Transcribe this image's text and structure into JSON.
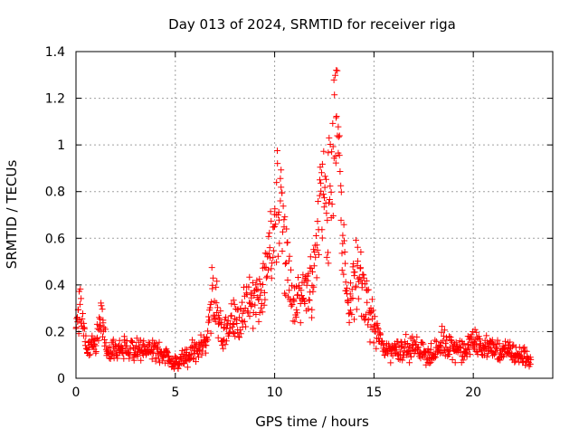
{
  "chart_data": {
    "type": "scatter",
    "title": "Day 013 of 2024, SRMTID for receiver riga",
    "xlabel": "GPS time / hours",
    "ylabel": "SRMTID / TECUs",
    "xlim": [
      0,
      24
    ],
    "ylim": [
      0,
      1.4
    ],
    "x_ticks": [
      0,
      5,
      10,
      15,
      20
    ],
    "x_tick_labels": [
      "0",
      "5",
      "10",
      "15",
      "20"
    ],
    "y_ticks": [
      0,
      0.2,
      0.4,
      0.6,
      0.8,
      1,
      1.2,
      1.4
    ],
    "y_tick_labels": [
      "0",
      "0.2",
      "0.4",
      "0.6",
      "0.8",
      "1",
      "1.2",
      "1.4"
    ],
    "grid": true,
    "marker": "plus",
    "series": [
      {
        "name": "SRMTID",
        "color": "#ff0000",
        "x_start": 0,
        "x_end": 22.9,
        "profile": [
          {
            "x": 0.0,
            "y": 0.2
          },
          {
            "x": 0.2,
            "y": 0.34
          },
          {
            "x": 0.5,
            "y": 0.14
          },
          {
            "x": 1.0,
            "y": 0.14
          },
          {
            "x": 1.3,
            "y": 0.28
          },
          {
            "x": 1.6,
            "y": 0.12
          },
          {
            "x": 3.0,
            "y": 0.13
          },
          {
            "x": 4.5,
            "y": 0.1
          },
          {
            "x": 4.9,
            "y": 0.06
          },
          {
            "x": 6.0,
            "y": 0.12
          },
          {
            "x": 6.6,
            "y": 0.15
          },
          {
            "x": 6.9,
            "y": 0.38
          },
          {
            "x": 7.4,
            "y": 0.18
          },
          {
            "x": 8.0,
            "y": 0.27
          },
          {
            "x": 9.0,
            "y": 0.32
          },
          {
            "x": 9.5,
            "y": 0.42
          },
          {
            "x": 10.0,
            "y": 0.68
          },
          {
            "x": 10.2,
            "y": 0.78
          },
          {
            "x": 10.5,
            "y": 0.55
          },
          {
            "x": 11.0,
            "y": 0.3
          },
          {
            "x": 11.5,
            "y": 0.38
          },
          {
            "x": 12.0,
            "y": 0.46
          },
          {
            "x": 12.4,
            "y": 0.8
          },
          {
            "x": 12.7,
            "y": 0.78
          },
          {
            "x": 13.0,
            "y": 0.95
          },
          {
            "x": 13.15,
            "y": 1.2
          },
          {
            "x": 13.4,
            "y": 0.6
          },
          {
            "x": 13.7,
            "y": 0.3
          },
          {
            "x": 14.1,
            "y": 0.46
          },
          {
            "x": 14.5,
            "y": 0.35
          },
          {
            "x": 15.0,
            "y": 0.22
          },
          {
            "x": 15.5,
            "y": 0.12
          },
          {
            "x": 17.0,
            "y": 0.13
          },
          {
            "x": 18.0,
            "y": 0.1
          },
          {
            "x": 18.5,
            "y": 0.16
          },
          {
            "x": 19.5,
            "y": 0.11
          },
          {
            "x": 20.0,
            "y": 0.16
          },
          {
            "x": 21.0,
            "y": 0.12
          },
          {
            "x": 22.0,
            "y": 0.11
          },
          {
            "x": 22.9,
            "y": 0.08
          }
        ],
        "spread": 0.28,
        "point_count": 1100,
        "max_value": 1.32,
        "max_at_x": 13.1
      }
    ]
  }
}
